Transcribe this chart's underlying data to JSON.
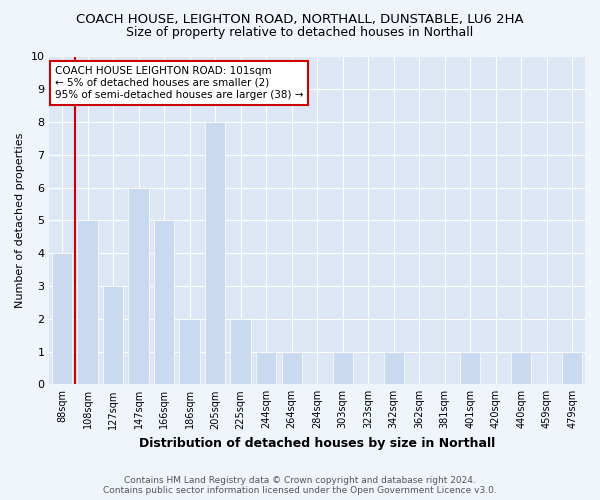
{
  "title_line1": "COACH HOUSE, LEIGHTON ROAD, NORTHALL, DUNSTABLE, LU6 2HA",
  "title_line2": "Size of property relative to detached houses in Northall",
  "xlabel": "Distribution of detached houses by size in Northall",
  "ylabel": "Number of detached properties",
  "categories": [
    "88sqm",
    "108sqm",
    "127sqm",
    "147sqm",
    "166sqm",
    "186sqm",
    "205sqm",
    "225sqm",
    "244sqm",
    "264sqm",
    "284sqm",
    "303sqm",
    "323sqm",
    "342sqm",
    "362sqm",
    "381sqm",
    "401sqm",
    "420sqm",
    "440sqm",
    "459sqm",
    "479sqm"
  ],
  "values": [
    4,
    5,
    3,
    6,
    5,
    2,
    8,
    2,
    1,
    1,
    0,
    1,
    0,
    1,
    0,
    0,
    1,
    0,
    1,
    0,
    1
  ],
  "bar_color": "#c9d9ef",
  "vline_color": "#cc0000",
  "annotation_title": "COACH HOUSE LEIGHTON ROAD: 101sqm",
  "annotation_line2": "← 5% of detached houses are smaller (2)",
  "annotation_line3": "95% of semi-detached houses are larger (38) →",
  "annotation_box_edgecolor": "#cc0000",
  "ylim": [
    0,
    10
  ],
  "yticks": [
    0,
    1,
    2,
    3,
    4,
    5,
    6,
    7,
    8,
    9,
    10
  ],
  "footer_line1": "Contains HM Land Registry data © Crown copyright and database right 2024.",
  "footer_line2": "Contains public sector information licensed under the Open Government Licence v3.0.",
  "fig_bg_color": "#f0f4fb",
  "plot_bg_color": "#dce6f5",
  "grid_color": "#ffffff",
  "title_fontsize": 9.5,
  "subtitle_fontsize": 9,
  "bar_width": 0.8
}
